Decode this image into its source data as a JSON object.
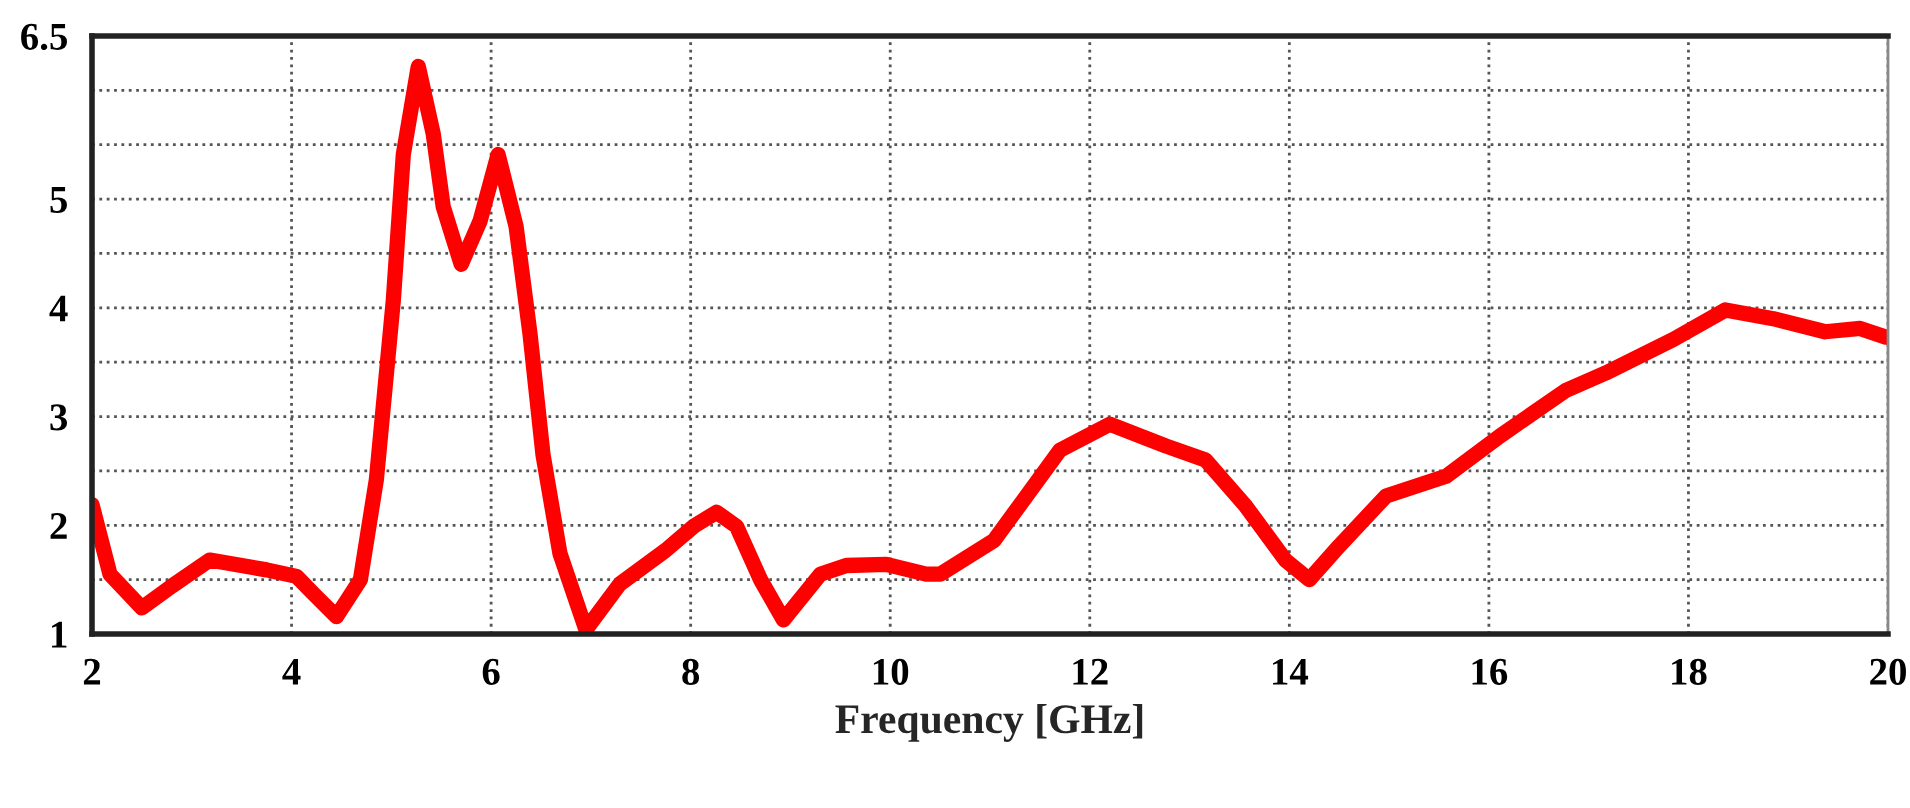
{
  "chart_data": {
    "type": "line",
    "xlabel": "Frequency [GHz]",
    "xlim": [
      2,
      20
    ],
    "xticks": [
      2,
      4,
      6,
      8,
      10,
      12,
      14,
      16,
      18,
      20
    ],
    "ylim": [
      1,
      6.5
    ],
    "yticks": [
      1,
      {
        "value": 1.5,
        "label": null
      },
      2,
      {
        "value": 2.5,
        "label": null
      },
      3,
      {
        "value": 3.5,
        "label": null
      },
      4,
      {
        "value": 4.5,
        "label": null
      },
      5,
      {
        "value": 5.5,
        "label": null
      },
      {
        "value": 6,
        "label": null
      },
      6.5
    ],
    "grid": true,
    "marker": "none",
    "line_style": "solid",
    "series": [
      {
        "color": "#ff0000",
        "x": [
          2.0,
          2.18,
          2.5,
          2.8,
          3.18,
          3.75,
          4.05,
          4.22,
          4.45,
          4.69,
          4.85,
          5.02,
          5.12,
          5.27,
          5.42,
          5.52,
          5.7,
          5.89,
          6.07,
          6.25,
          6.39,
          6.52,
          6.69,
          6.95,
          7.29,
          7.75,
          8.03,
          8.26,
          8.46,
          8.7,
          8.93,
          9.3,
          9.56,
          9.96,
          10.36,
          10.5,
          11.04,
          11.7,
          12.2,
          12.76,
          13.16,
          13.56,
          13.96,
          14.2,
          14.5,
          14.97,
          15.57,
          16.11,
          16.77,
          17.17,
          17.85,
          18.37,
          18.85,
          19.37,
          19.72,
          19.98
        ],
        "values": [
          2.19,
          1.55,
          1.24,
          1.44,
          1.68,
          1.59,
          1.53,
          1.37,
          1.16,
          1.5,
          2.42,
          4.07,
          5.41,
          6.22,
          5.6,
          4.93,
          4.4,
          4.8,
          5.41,
          4.75,
          3.76,
          2.65,
          1.74,
          1.04,
          1.46,
          1.77,
          1.99,
          2.12,
          1.99,
          1.5,
          1.13,
          1.55,
          1.63,
          1.64,
          1.55,
          1.55,
          1.86,
          2.69,
          2.93,
          2.73,
          2.6,
          2.18,
          1.68,
          1.5,
          1.81,
          2.27,
          2.45,
          2.82,
          3.24,
          3.4,
          3.71,
          3.98,
          3.9,
          3.78,
          3.81,
          3.73
        ]
      }
    ]
  }
}
